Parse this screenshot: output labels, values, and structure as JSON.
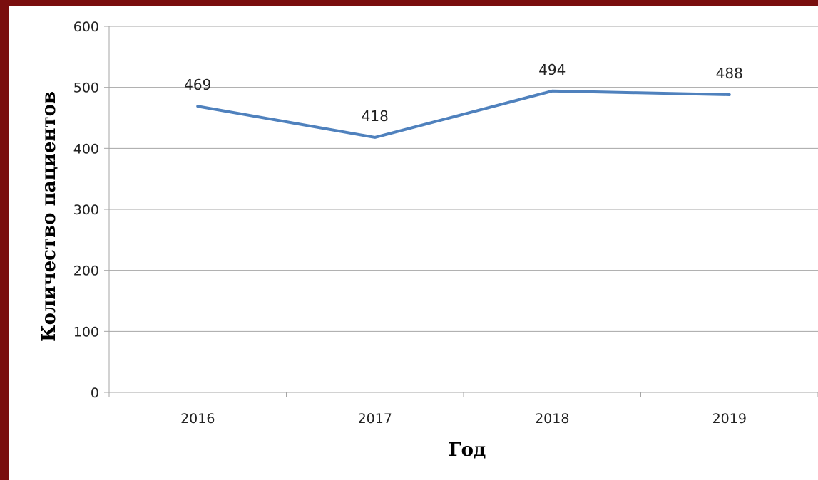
{
  "chart_data": {
    "type": "line",
    "categories": [
      "2016",
      "2017",
      "2018",
      "2019"
    ],
    "series": [
      {
        "values": [
          469,
          418,
          494,
          488
        ],
        "color": "#4f81bd"
      }
    ],
    "title": "",
    "xlabel": "Год",
    "ylabel": "Количество пациентов",
    "ylim": [
      0,
      600
    ],
    "yticks": [
      0,
      100,
      200,
      300,
      400,
      500,
      600
    ],
    "grid": true,
    "legend": "none",
    "data_labels": [
      "469",
      "418",
      "494",
      "488"
    ]
  },
  "colors": {
    "frame": "#7a0e0e",
    "gridline": "#a6a6a6",
    "series": "#4f81bd"
  }
}
